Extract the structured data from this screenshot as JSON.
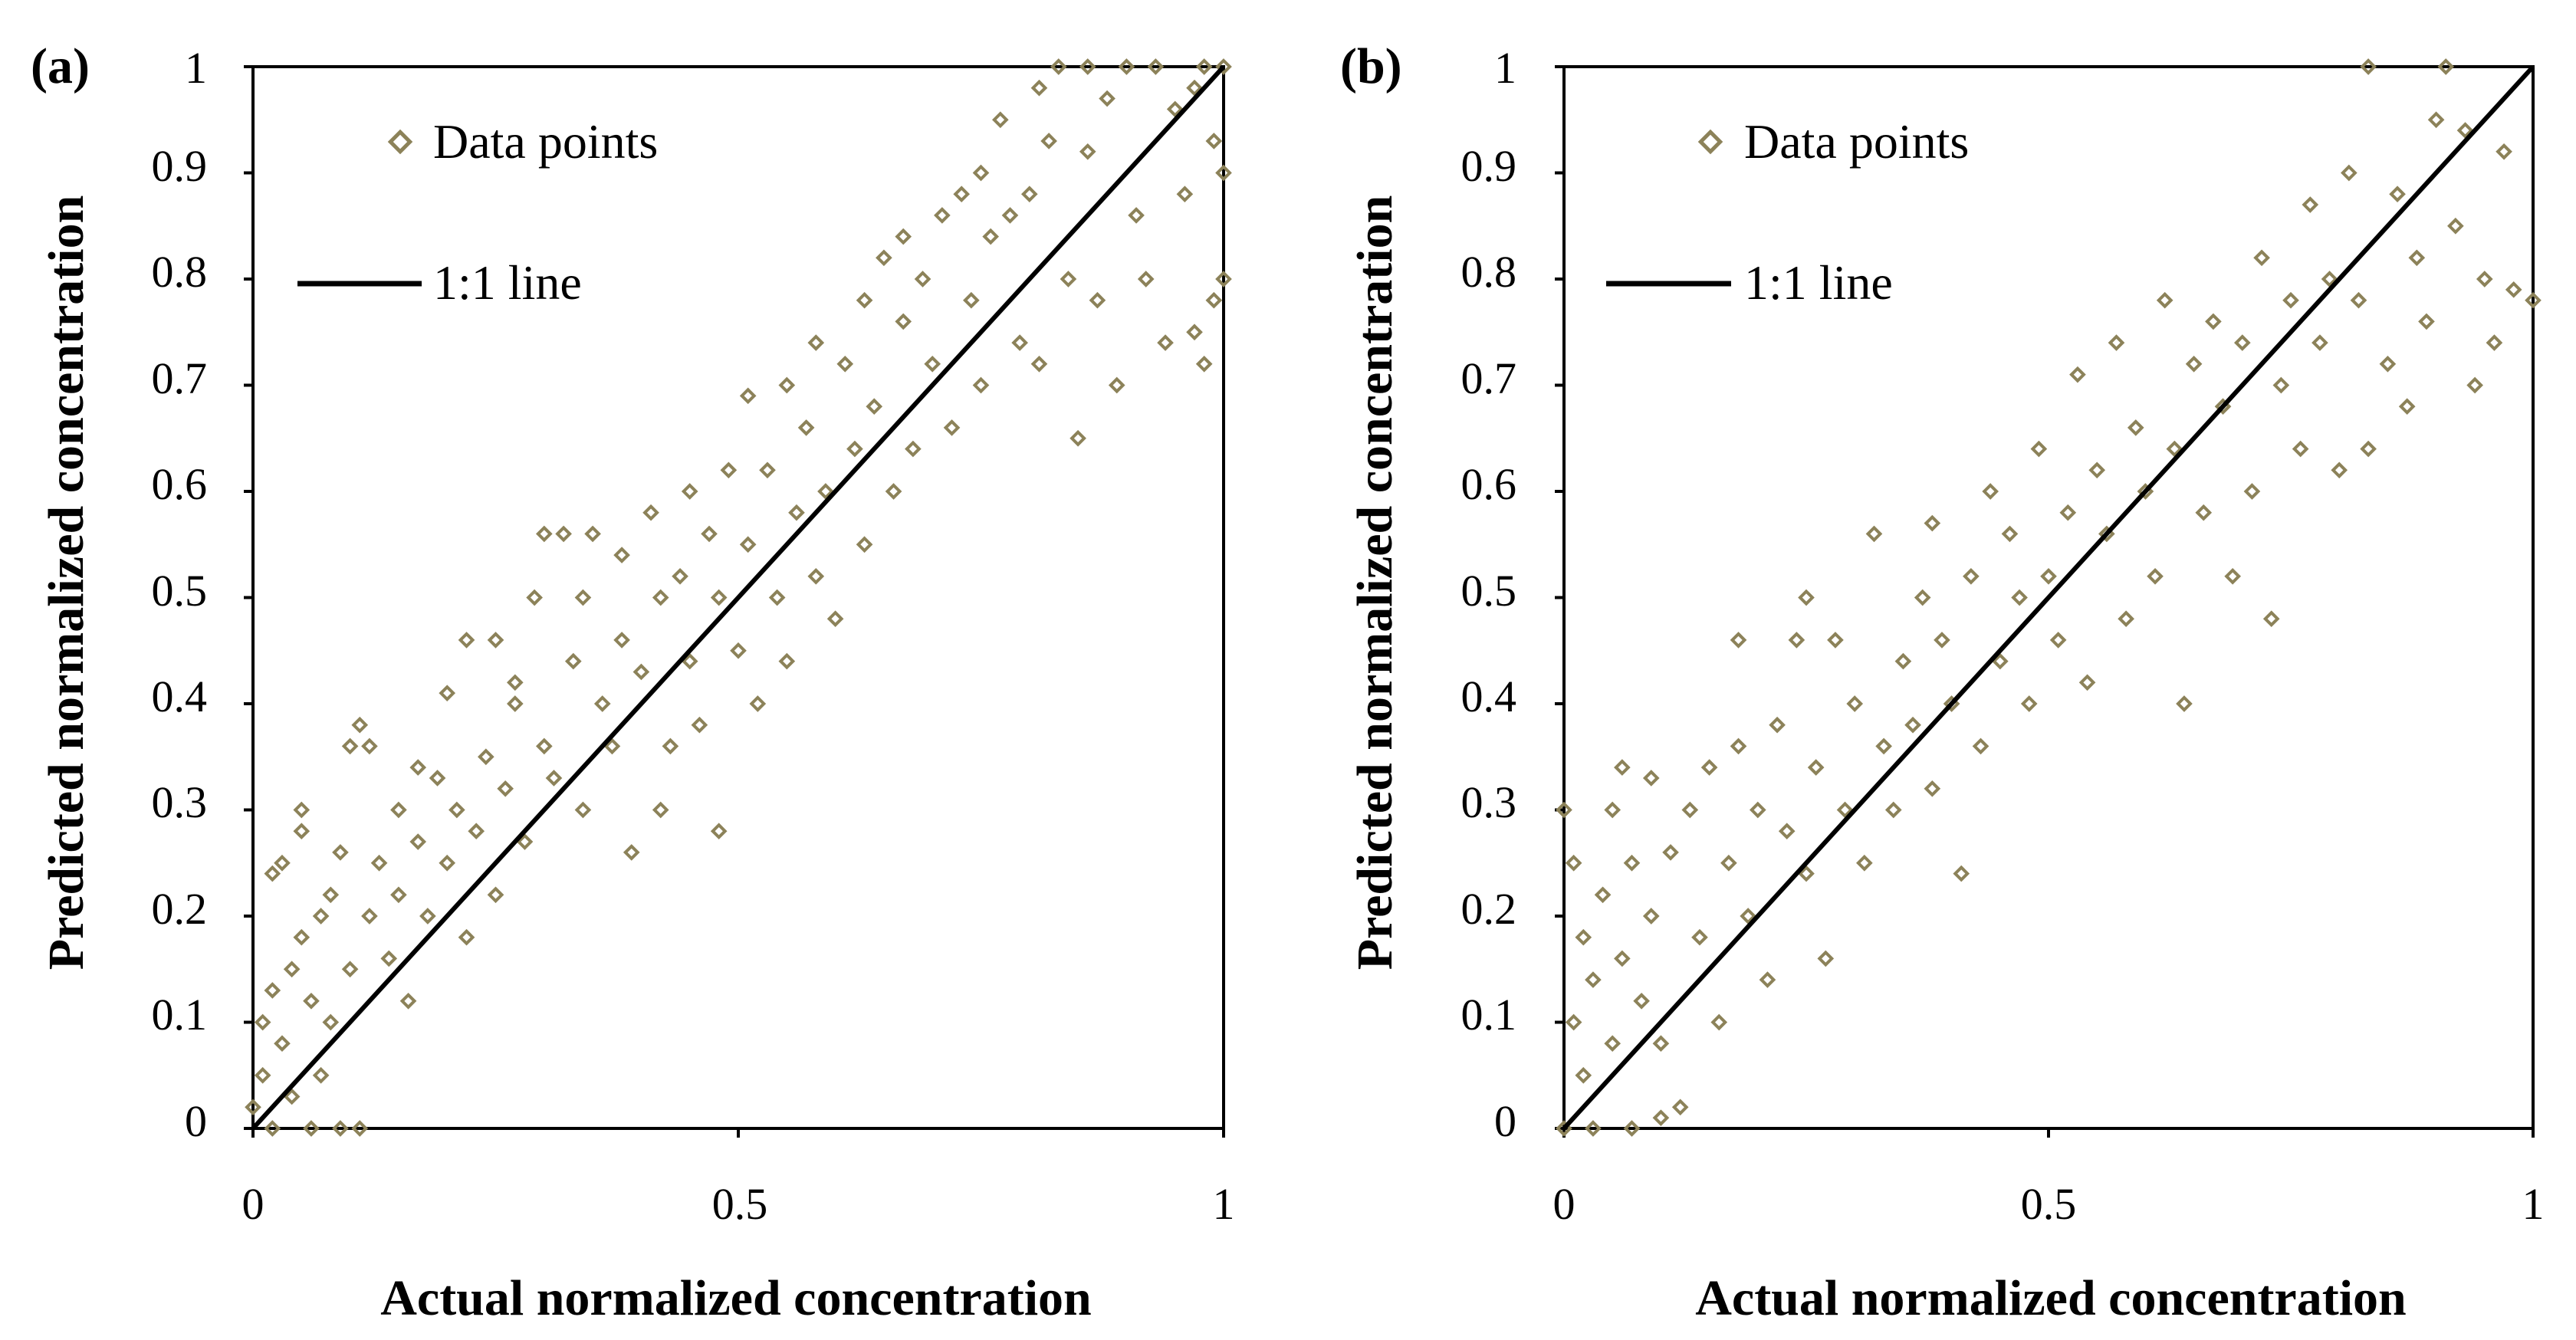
{
  "chart_data": [
    {
      "panel_label": "(a)",
      "type": "scatter",
      "xlabel": "Actual normalized concentration",
      "ylabel": "Predicted normalized concentration",
      "xlim": [
        0,
        1
      ],
      "ylim": [
        0,
        1
      ],
      "x_ticks": [
        "0",
        "0.5",
        "1"
      ],
      "y_ticks": [
        "0",
        "0.1",
        "0.2",
        "0.3",
        "0.4",
        "0.5",
        "0.6",
        "0.7",
        "0.8",
        "0.9",
        "1"
      ],
      "legend": {
        "position": "top-left",
        "points_label": "Data points",
        "line_label": "1:1 line"
      },
      "marker_color": "#8C8259",
      "line_color": "#000000",
      "reference_line": {
        "x": [
          0,
          1
        ],
        "y": [
          0,
          1
        ]
      },
      "series": [
        {
          "name": "Data points",
          "points": [
            [
              0.0,
              0.02
            ],
            [
              0.01,
              0.05
            ],
            [
              0.01,
              0.1
            ],
            [
              0.02,
              0.0
            ],
            [
              0.02,
              0.13
            ],
            [
              0.02,
              0.24
            ],
            [
              0.03,
              0.25
            ],
            [
              0.03,
              0.08
            ],
            [
              0.04,
              0.03
            ],
            [
              0.04,
              0.15
            ],
            [
              0.05,
              0.28
            ],
            [
              0.05,
              0.3
            ],
            [
              0.05,
              0.18
            ],
            [
              0.06,
              0.0
            ],
            [
              0.06,
              0.12
            ],
            [
              0.07,
              0.2
            ],
            [
              0.07,
              0.05
            ],
            [
              0.08,
              0.22
            ],
            [
              0.08,
              0.1
            ],
            [
              0.09,
              0.0
            ],
            [
              0.09,
              0.26
            ],
            [
              0.1,
              0.15
            ],
            [
              0.1,
              0.36
            ],
            [
              0.11,
              0.0
            ],
            [
              0.11,
              0.38
            ],
            [
              0.12,
              0.36
            ],
            [
              0.12,
              0.2
            ],
            [
              0.13,
              0.25
            ],
            [
              0.14,
              0.16
            ],
            [
              0.15,
              0.3
            ],
            [
              0.15,
              0.22
            ],
            [
              0.16,
              0.12
            ],
            [
              0.17,
              0.27
            ],
            [
              0.17,
              0.34
            ],
            [
              0.18,
              0.2
            ],
            [
              0.19,
              0.33
            ],
            [
              0.2,
              0.41
            ],
            [
              0.2,
              0.25
            ],
            [
              0.21,
              0.3
            ],
            [
              0.22,
              0.46
            ],
            [
              0.22,
              0.18
            ],
            [
              0.23,
              0.28
            ],
            [
              0.24,
              0.35
            ],
            [
              0.25,
              0.46
            ],
            [
              0.25,
              0.22
            ],
            [
              0.26,
              0.32
            ],
            [
              0.27,
              0.4
            ],
            [
              0.27,
              0.42
            ],
            [
              0.28,
              0.27
            ],
            [
              0.29,
              0.5
            ],
            [
              0.3,
              0.56
            ],
            [
              0.3,
              0.36
            ],
            [
              0.31,
              0.33
            ],
            [
              0.32,
              0.56
            ],
            [
              0.33,
              0.44
            ],
            [
              0.34,
              0.3
            ],
            [
              0.34,
              0.5
            ],
            [
              0.35,
              0.56
            ],
            [
              0.36,
              0.4
            ],
            [
              0.37,
              0.36
            ],
            [
              0.38,
              0.54
            ],
            [
              0.38,
              0.46
            ],
            [
              0.39,
              0.26
            ],
            [
              0.4,
              0.43
            ],
            [
              0.41,
              0.58
            ],
            [
              0.42,
              0.5
            ],
            [
              0.42,
              0.3
            ],
            [
              0.43,
              0.36
            ],
            [
              0.44,
              0.52
            ],
            [
              0.45,
              0.44
            ],
            [
              0.45,
              0.6
            ],
            [
              0.46,
              0.38
            ],
            [
              0.47,
              0.56
            ],
            [
              0.48,
              0.5
            ],
            [
              0.48,
              0.28
            ],
            [
              0.49,
              0.62
            ],
            [
              0.5,
              0.45
            ],
            [
              0.51,
              0.55
            ],
            [
              0.51,
              0.69
            ],
            [
              0.52,
              0.4
            ],
            [
              0.53,
              0.62
            ],
            [
              0.54,
              0.5
            ],
            [
              0.55,
              0.7
            ],
            [
              0.55,
              0.44
            ],
            [
              0.56,
              0.58
            ],
            [
              0.57,
              0.66
            ],
            [
              0.58,
              0.52
            ],
            [
              0.58,
              0.74
            ],
            [
              0.59,
              0.6
            ],
            [
              0.6,
              0.48
            ],
            [
              0.61,
              0.72
            ],
            [
              0.62,
              0.64
            ],
            [
              0.63,
              0.78
            ],
            [
              0.63,
              0.55
            ],
            [
              0.64,
              0.68
            ],
            [
              0.65,
              0.82
            ],
            [
              0.66,
              0.6
            ],
            [
              0.67,
              0.76
            ],
            [
              0.67,
              0.84
            ],
            [
              0.68,
              0.64
            ],
            [
              0.69,
              0.8
            ],
            [
              0.7,
              0.72
            ],
            [
              0.71,
              0.86
            ],
            [
              0.72,
              0.66
            ],
            [
              0.73,
              0.88
            ],
            [
              0.74,
              0.78
            ],
            [
              0.75,
              0.9
            ],
            [
              0.75,
              0.7
            ],
            [
              0.76,
              0.84
            ],
            [
              0.77,
              0.95
            ],
            [
              0.78,
              0.86
            ],
            [
              0.79,
              0.74
            ],
            [
              0.8,
              0.88
            ],
            [
              0.81,
              0.98
            ],
            [
              0.81,
              0.72
            ],
            [
              0.82,
              0.93
            ],
            [
              0.83,
              1.0
            ],
            [
              0.84,
              0.8
            ],
            [
              0.85,
              0.65
            ],
            [
              0.86,
              0.92
            ],
            [
              0.86,
              1.0
            ],
            [
              0.87,
              0.78
            ],
            [
              0.88,
              0.97
            ],
            [
              0.89,
              0.7
            ],
            [
              0.9,
              1.0
            ],
            [
              0.91,
              0.86
            ],
            [
              0.92,
              0.8
            ],
            [
              0.93,
              1.0
            ],
            [
              0.94,
              0.74
            ],
            [
              0.95,
              0.96
            ],
            [
              0.96,
              0.88
            ],
            [
              0.97,
              0.75
            ],
            [
              0.98,
              1.0
            ],
            [
              0.98,
              0.72
            ],
            [
              0.99,
              0.93
            ],
            [
              1.0,
              1.0
            ],
            [
              1.0,
              0.8
            ],
            [
              1.0,
              0.9
            ],
            [
              0.99,
              0.78
            ],
            [
              0.97,
              0.98
            ]
          ]
        }
      ]
    },
    {
      "panel_label": "(b)",
      "type": "scatter",
      "xlabel": "Actual normalized concentration",
      "ylabel": "Predicted normalized concentration",
      "xlim": [
        0,
        1
      ],
      "ylim": [
        0,
        1
      ],
      "x_ticks": [
        "0",
        "0.5",
        "1"
      ],
      "y_ticks": [
        "0",
        "0.1",
        "0.2",
        "0.3",
        "0.4",
        "0.5",
        "0.6",
        "0.7",
        "0.8",
        "0.9",
        "1"
      ],
      "legend": {
        "position": "top-left",
        "points_label": "Data points",
        "line_label": "1:1 line"
      },
      "marker_color": "#8C8259",
      "line_color": "#000000",
      "reference_line": {
        "x": [
          0,
          1
        ],
        "y": [
          0,
          1
        ]
      },
      "series": [
        {
          "name": "Data points",
          "points": [
            [
              0.0,
              0.0
            ],
            [
              0.0,
              0.3
            ],
            [
              0.01,
              0.1
            ],
            [
              0.01,
              0.25
            ],
            [
              0.02,
              0.05
            ],
            [
              0.02,
              0.18
            ],
            [
              0.03,
              0.0
            ],
            [
              0.03,
              0.14
            ],
            [
              0.04,
              0.22
            ],
            [
              0.05,
              0.08
            ],
            [
              0.05,
              0.3
            ],
            [
              0.06,
              0.34
            ],
            [
              0.06,
              0.16
            ],
            [
              0.07,
              0.0
            ],
            [
              0.07,
              0.25
            ],
            [
              0.08,
              0.12
            ],
            [
              0.09,
              0.33
            ],
            [
              0.09,
              0.2
            ],
            [
              0.1,
              0.08
            ],
            [
              0.1,
              0.01
            ],
            [
              0.11,
              0.26
            ],
            [
              0.12,
              0.02
            ],
            [
              0.13,
              0.3
            ],
            [
              0.14,
              0.18
            ],
            [
              0.15,
              0.34
            ],
            [
              0.16,
              0.1
            ],
            [
              0.17,
              0.25
            ],
            [
              0.18,
              0.46
            ],
            [
              0.18,
              0.36
            ],
            [
              0.19,
              0.2
            ],
            [
              0.2,
              0.3
            ],
            [
              0.21,
              0.14
            ],
            [
              0.22,
              0.38
            ],
            [
              0.23,
              0.28
            ],
            [
              0.24,
              0.46
            ],
            [
              0.25,
              0.5
            ],
            [
              0.25,
              0.24
            ],
            [
              0.26,
              0.34
            ],
            [
              0.27,
              0.16
            ],
            [
              0.28,
              0.46
            ],
            [
              0.29,
              0.3
            ],
            [
              0.3,
              0.4
            ],
            [
              0.31,
              0.25
            ],
            [
              0.32,
              0.56
            ],
            [
              0.33,
              0.36
            ],
            [
              0.34,
              0.3
            ],
            [
              0.35,
              0.44
            ],
            [
              0.36,
              0.38
            ],
            [
              0.37,
              0.5
            ],
            [
              0.38,
              0.57
            ],
            [
              0.38,
              0.32
            ],
            [
              0.39,
              0.46
            ],
            [
              0.4,
              0.4
            ],
            [
              0.41,
              0.24
            ],
            [
              0.42,
              0.52
            ],
            [
              0.43,
              0.36
            ],
            [
              0.44,
              0.6
            ],
            [
              0.45,
              0.44
            ],
            [
              0.46,
              0.56
            ],
            [
              0.47,
              0.5
            ],
            [
              0.48,
              0.4
            ],
            [
              0.49,
              0.64
            ],
            [
              0.5,
              0.52
            ],
            [
              0.51,
              0.46
            ],
            [
              0.52,
              0.58
            ],
            [
              0.53,
              0.71
            ],
            [
              0.54,
              0.42
            ],
            [
              0.55,
              0.62
            ],
            [
              0.56,
              0.56
            ],
            [
              0.57,
              0.74
            ],
            [
              0.58,
              0.48
            ],
            [
              0.59,
              0.66
            ],
            [
              0.6,
              0.6
            ],
            [
              0.61,
              0.52
            ],
            [
              0.62,
              0.78
            ],
            [
              0.63,
              0.64
            ],
            [
              0.64,
              0.4
            ],
            [
              0.65,
              0.72
            ],
            [
              0.66,
              0.58
            ],
            [
              0.67,
              0.76
            ],
            [
              0.68,
              0.68
            ],
            [
              0.69,
              0.52
            ],
            [
              0.7,
              0.74
            ],
            [
              0.71,
              0.6
            ],
            [
              0.72,
              0.82
            ],
            [
              0.73,
              0.48
            ],
            [
              0.74,
              0.7
            ],
            [
              0.75,
              0.78
            ],
            [
              0.76,
              0.64
            ],
            [
              0.77,
              0.87
            ],
            [
              0.78,
              0.74
            ],
            [
              0.79,
              0.8
            ],
            [
              0.8,
              0.62
            ],
            [
              0.81,
              0.9
            ],
            [
              0.82,
              0.78
            ],
            [
              0.83,
              1.0
            ],
            [
              0.83,
              0.64
            ],
            [
              0.85,
              0.72
            ],
            [
              0.86,
              0.88
            ],
            [
              0.87,
              0.68
            ],
            [
              0.88,
              0.82
            ],
            [
              0.89,
              0.76
            ],
            [
              0.9,
              0.95
            ],
            [
              0.91,
              1.0
            ],
            [
              0.92,
              0.85
            ],
            [
              0.93,
              0.94
            ],
            [
              0.94,
              0.7
            ],
            [
              0.95,
              0.8
            ],
            [
              0.96,
              0.74
            ],
            [
              0.97,
              0.92
            ],
            [
              0.98,
              0.79
            ],
            [
              1.0,
              0.78
            ]
          ]
        }
      ]
    }
  ]
}
